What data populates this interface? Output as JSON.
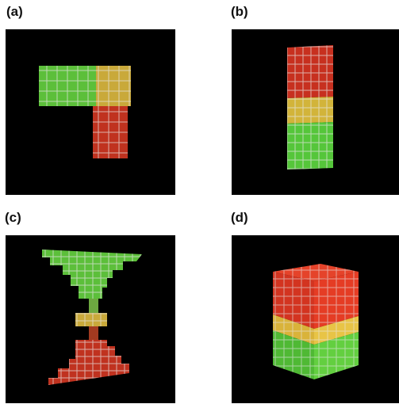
{
  "figure": {
    "panels": [
      {
        "label": "(a)"
      },
      {
        "label": "(b)"
      },
      {
        "label": "(c)"
      },
      {
        "label": "(d)"
      }
    ]
  },
  "colors": {
    "background": "#000000",
    "green": "#54c23a",
    "yellow": "#c9b13c",
    "red": "#c7301f",
    "grid_line": "#dddddd"
  }
}
